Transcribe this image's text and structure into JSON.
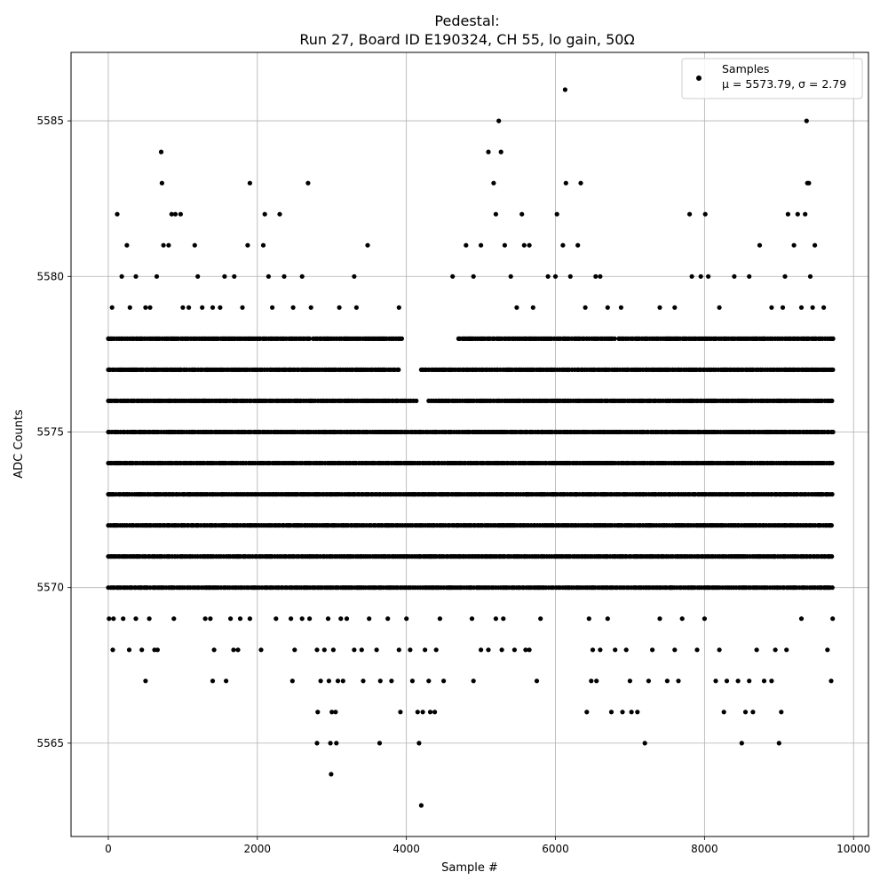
{
  "chart_data": {
    "type": "scatter",
    "title_line1": "Pedestal:",
    "title_line2": "Run 27, Board ID E190324, CH 55, lo gain, 50Ω",
    "xlabel": "Sample #",
    "ylabel": "ADC Counts",
    "xlim": [
      -500,
      10200
    ],
    "ylim": [
      5562,
      5587.2
    ],
    "x_ticks": [
      0,
      2000,
      4000,
      6000,
      8000,
      10000
    ],
    "y_ticks": [
      5565,
      5570,
      5575,
      5580,
      5585
    ],
    "grid": true,
    "legend_position": "top-right",
    "series": [
      {
        "name": "Samples",
        "stats_label": "μ = 5573.79, σ = 2.79",
        "color": "#000000",
        "marker": "circle",
        "n_samples": 9728,
        "band_levels": [
          5570,
          5571,
          5572,
          5573,
          5574,
          5575,
          5576,
          5577,
          5578
        ],
        "band_segments": [
          {
            "y": 5578,
            "ranges": [
              [
                0,
                2700
              ],
              [
                2750,
                3950
              ],
              [
                4700,
                6800
              ],
              [
                6850,
                9728
              ]
            ]
          },
          {
            "y": 5577,
            "ranges": [
              [
                0,
                3900
              ],
              [
                4200,
                9728
              ]
            ]
          },
          {
            "y": 5576,
            "ranges": [
              [
                0,
                4150
              ],
              [
                4300,
                9728
              ]
            ]
          },
          {
            "y": 5575,
            "ranges": [
              [
                0,
                9728
              ]
            ]
          },
          {
            "y": 5574,
            "ranges": [
              [
                0,
                9728
              ]
            ]
          },
          {
            "y": 5573,
            "ranges": [
              [
                0,
                9728
              ]
            ]
          },
          {
            "y": 5572,
            "ranges": [
              [
                0,
                9728
              ]
            ]
          },
          {
            "y": 5571,
            "ranges": [
              [
                0,
                9728
              ]
            ]
          },
          {
            "y": 5570,
            "ranges": [
              [
                0,
                9728
              ]
            ]
          }
        ],
        "sparse_points": [
          [
            5,
            5578
          ],
          [
            50,
            5579
          ],
          [
            120,
            5582
          ],
          [
            180,
            5580
          ],
          [
            250,
            5581
          ],
          [
            290,
            5579
          ],
          [
            370,
            5580
          ],
          [
            500,
            5579
          ],
          [
            560,
            5579
          ],
          [
            650,
            5580
          ],
          [
            710,
            5584
          ],
          [
            720,
            5583
          ],
          [
            740,
            5581
          ],
          [
            810,
            5581
          ],
          [
            850,
            5582
          ],
          [
            900,
            5582
          ],
          [
            970,
            5582
          ],
          [
            1000,
            5579
          ],
          [
            1080,
            5579
          ],
          [
            1160,
            5581
          ],
          [
            1200,
            5580
          ],
          [
            1260,
            5579
          ],
          [
            1400,
            5579
          ],
          [
            1500,
            5579
          ],
          [
            1560,
            5580
          ],
          [
            1690,
            5580
          ],
          [
            1800,
            5579
          ],
          [
            1870,
            5581
          ],
          [
            1900,
            5583
          ],
          [
            2080,
            5581
          ],
          [
            2100,
            5582
          ],
          [
            2150,
            5580
          ],
          [
            2200,
            5579
          ],
          [
            2300,
            5582
          ],
          [
            2360,
            5580
          ],
          [
            2480,
            5579
          ],
          [
            2600,
            5580
          ],
          [
            2680,
            5583
          ],
          [
            2720,
            5579
          ],
          [
            3100,
            5579
          ],
          [
            3300,
            5580
          ],
          [
            3330,
            5579
          ],
          [
            3480,
            5581
          ],
          [
            3900,
            5579
          ],
          [
            4620,
            5580
          ],
          [
            4800,
            5581
          ],
          [
            4900,
            5580
          ],
          [
            5000,
            5581
          ],
          [
            5100,
            5584
          ],
          [
            5170,
            5583
          ],
          [
            5200,
            5582
          ],
          [
            5240,
            5585
          ],
          [
            5270,
            5584
          ],
          [
            5320,
            5581
          ],
          [
            5400,
            5580
          ],
          [
            5480,
            5579
          ],
          [
            5550,
            5582
          ],
          [
            5580,
            5581
          ],
          [
            5650,
            5581
          ],
          [
            5700,
            5579
          ],
          [
            5900,
            5580
          ],
          [
            6000,
            5580
          ],
          [
            6020,
            5582
          ],
          [
            6100,
            5581
          ],
          [
            6130,
            5586
          ],
          [
            6140,
            5583
          ],
          [
            6200,
            5580
          ],
          [
            6300,
            5581
          ],
          [
            6340,
            5583
          ],
          [
            6400,
            5579
          ],
          [
            6540,
            5580
          ],
          [
            6600,
            5580
          ],
          [
            6700,
            5579
          ],
          [
            6880,
            5579
          ],
          [
            7400,
            5579
          ],
          [
            7600,
            5579
          ],
          [
            7800,
            5582
          ],
          [
            7830,
            5580
          ],
          [
            7950,
            5580
          ],
          [
            8010,
            5582
          ],
          [
            8050,
            5580
          ],
          [
            8200,
            5579
          ],
          [
            8400,
            5580
          ],
          [
            8600,
            5580
          ],
          [
            8740,
            5581
          ],
          [
            8900,
            5579
          ],
          [
            9050,
            5579
          ],
          [
            9080,
            5580
          ],
          [
            9120,
            5582
          ],
          [
            9200,
            5581
          ],
          [
            9250,
            5582
          ],
          [
            9300,
            5579
          ],
          [
            9350,
            5582
          ],
          [
            9370,
            5585
          ],
          [
            9380,
            5583
          ],
          [
            9400,
            5583
          ],
          [
            9420,
            5580
          ],
          [
            9450,
            5579
          ],
          [
            9480,
            5581
          ],
          [
            9600,
            5579
          ],
          [
            10,
            5569
          ],
          [
            60,
            5568
          ],
          [
            70,
            5569
          ],
          [
            200,
            5569
          ],
          [
            280,
            5568
          ],
          [
            370,
            5569
          ],
          [
            450,
            5568
          ],
          [
            500,
            5567
          ],
          [
            550,
            5569
          ],
          [
            620,
            5568
          ],
          [
            660,
            5568
          ],
          [
            880,
            5569
          ],
          [
            1300,
            5569
          ],
          [
            1370,
            5569
          ],
          [
            1400,
            5567
          ],
          [
            1420,
            5568
          ],
          [
            1580,
            5567
          ],
          [
            1640,
            5569
          ],
          [
            1680,
            5568
          ],
          [
            1740,
            5568
          ],
          [
            1770,
            5569
          ],
          [
            1900,
            5569
          ],
          [
            2050,
            5568
          ],
          [
            2250,
            5569
          ],
          [
            2450,
            5569
          ],
          [
            2470,
            5567
          ],
          [
            2500,
            5568
          ],
          [
            2600,
            5569
          ],
          [
            2700,
            5569
          ],
          [
            2800,
            5568
          ],
          [
            2800,
            5565
          ],
          [
            2810,
            5566
          ],
          [
            2850,
            5567
          ],
          [
            2900,
            5568
          ],
          [
            2950,
            5569
          ],
          [
            2960,
            5567
          ],
          [
            2980,
            5565
          ],
          [
            2990,
            5564
          ],
          [
            3000,
            5566
          ],
          [
            3020,
            5568
          ],
          [
            3050,
            5566
          ],
          [
            3060,
            5565
          ],
          [
            3080,
            5567
          ],
          [
            3120,
            5569
          ],
          [
            3150,
            5567
          ],
          [
            3200,
            5569
          ],
          [
            3300,
            5568
          ],
          [
            3400,
            5568
          ],
          [
            3420,
            5567
          ],
          [
            3500,
            5569
          ],
          [
            3600,
            5568
          ],
          [
            3640,
            5565
          ],
          [
            3650,
            5567
          ],
          [
            3750,
            5569
          ],
          [
            3800,
            5567
          ],
          [
            3900,
            5568
          ],
          [
            3920,
            5566
          ],
          [
            4000,
            5569
          ],
          [
            4050,
            5568
          ],
          [
            4080,
            5567
          ],
          [
            4150,
            5566
          ],
          [
            4170,
            5565
          ],
          [
            4200,
            5563
          ],
          [
            4220,
            5566
          ],
          [
            4250,
            5568
          ],
          [
            4300,
            5567
          ],
          [
            4320,
            5566
          ],
          [
            4380,
            5566
          ],
          [
            4400,
            5568
          ],
          [
            4450,
            5569
          ],
          [
            4500,
            5567
          ],
          [
            4900,
            5567
          ],
          [
            4880,
            5569
          ],
          [
            5000,
            5568
          ],
          [
            5100,
            5568
          ],
          [
            5200,
            5569
          ],
          [
            5280,
            5568
          ],
          [
            5300,
            5569
          ],
          [
            5450,
            5568
          ],
          [
            5600,
            5568
          ],
          [
            5650,
            5568
          ],
          [
            5750,
            5567
          ],
          [
            5800,
            5569
          ],
          [
            6420,
            5566
          ],
          [
            6450,
            5569
          ],
          [
            6480,
            5567
          ],
          [
            6500,
            5568
          ],
          [
            6550,
            5567
          ],
          [
            6600,
            5568
          ],
          [
            6700,
            5569
          ],
          [
            6750,
            5566
          ],
          [
            6800,
            5568
          ],
          [
            6900,
            5566
          ],
          [
            6950,
            5568
          ],
          [
            7000,
            5567
          ],
          [
            7020,
            5566
          ],
          [
            7100,
            5566
          ],
          [
            7200,
            5565
          ],
          [
            7250,
            5567
          ],
          [
            7300,
            5568
          ],
          [
            7400,
            5569
          ],
          [
            7500,
            5567
          ],
          [
            7600,
            5568
          ],
          [
            7650,
            5567
          ],
          [
            7700,
            5569
          ],
          [
            7900,
            5568
          ],
          [
            8000,
            5569
          ],
          [
            8150,
            5567
          ],
          [
            8200,
            5568
          ],
          [
            8260,
            5566
          ],
          [
            8300,
            5567
          ],
          [
            8450,
            5567
          ],
          [
            8500,
            5565
          ],
          [
            8550,
            5566
          ],
          [
            8600,
            5567
          ],
          [
            8650,
            5566
          ],
          [
            8700,
            5568
          ],
          [
            8800,
            5567
          ],
          [
            8900,
            5567
          ],
          [
            8950,
            5568
          ],
          [
            9000,
            5565
          ],
          [
            9030,
            5566
          ],
          [
            9100,
            5568
          ],
          [
            9300,
            5569
          ],
          [
            9650,
            5568
          ],
          [
            9700,
            5567
          ],
          [
            9720,
            5569
          ]
        ]
      }
    ]
  }
}
